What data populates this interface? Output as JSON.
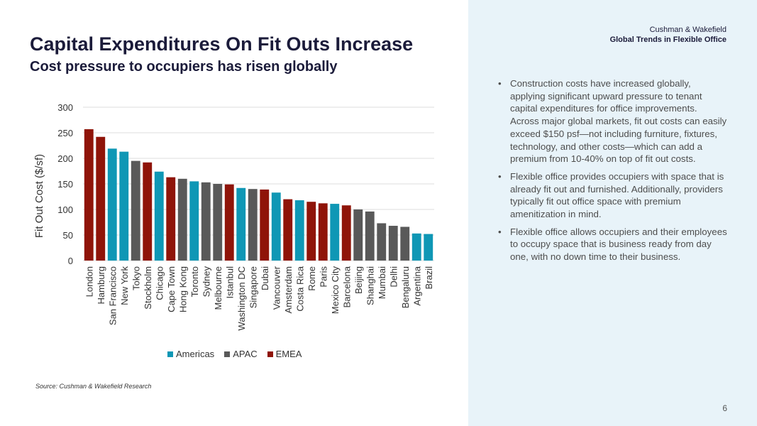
{
  "header": {
    "title": "Capital Expenditures On Fit Outs Increase",
    "subtitle": "Cost pressure to occupiers has risen globally",
    "brand": "Cushman & Wakefield",
    "report": "Global Trends in Flexible Office"
  },
  "bullets": [
    "Construction costs have increased globally, applying significant upward pressure to tenant capital expenditures for office improvements. Across major global markets, fit out costs can easily exceed $150 psf—not including furniture, fixtures, technology, and other costs—which can add a premium from 10-40% on top of fit out costs.",
    "Flexible office provides occupiers with space that is already fit out and furnished. Additionally, providers typically fit out office space with premium amenitization in mind.",
    "Flexible office allows occupiers and their employees to occupy space that is business ready from day one, with no down time to their business."
  ],
  "bullet_symbol": "•",
  "footer": {
    "source": "Source: Cushman & Wakefield Research",
    "page": "6"
  },
  "colors": {
    "Americas": "#0f97b5",
    "APAC": "#595959",
    "EMEA": "#8f1409",
    "panel": "#e8f3f9",
    "title": "#1b1b3a"
  },
  "chart_data": {
    "type": "bar",
    "title": "",
    "xlabel": "",
    "ylabel": "Fit Out Cost ($/sf)",
    "ylim": [
      0,
      300
    ],
    "yticks": [
      0,
      50,
      100,
      150,
      200,
      250,
      300
    ],
    "grid": true,
    "legend_position": "bottom",
    "legend": [
      "Americas",
      "APAC",
      "EMEA"
    ],
    "categories": [
      "London",
      "Hamburg",
      "San Francisco",
      "New York",
      "Tokyo",
      "Stockholm",
      "Chicago",
      "Cape Town",
      "Hong Kong",
      "Toronto",
      "Sydney",
      "Melbourne",
      "Istanbul",
      "Washington DC",
      "Singapore",
      "Dubai",
      "Vancouver",
      "Amsterdam",
      "Costa Rica",
      "Rome",
      "Paris",
      "Mexico City",
      "Barcelona",
      "Beijing",
      "Shanghai",
      "Mumbai",
      "Delhi",
      "Bengaluru",
      "Argentina",
      "Brazil"
    ],
    "values": [
      257,
      242,
      219,
      213,
      195,
      192,
      174,
      163,
      160,
      155,
      153,
      150,
      149,
      142,
      140,
      139,
      133,
      120,
      118,
      115,
      112,
      111,
      108,
      100,
      96,
      73,
      68,
      66,
      53,
      52
    ],
    "regions": [
      "EMEA",
      "EMEA",
      "Americas",
      "Americas",
      "APAC",
      "EMEA",
      "Americas",
      "EMEA",
      "APAC",
      "Americas",
      "APAC",
      "APAC",
      "EMEA",
      "Americas",
      "APAC",
      "EMEA",
      "Americas",
      "EMEA",
      "Americas",
      "EMEA",
      "EMEA",
      "Americas",
      "EMEA",
      "APAC",
      "APAC",
      "APAC",
      "APAC",
      "APAC",
      "Americas",
      "Americas"
    ]
  }
}
